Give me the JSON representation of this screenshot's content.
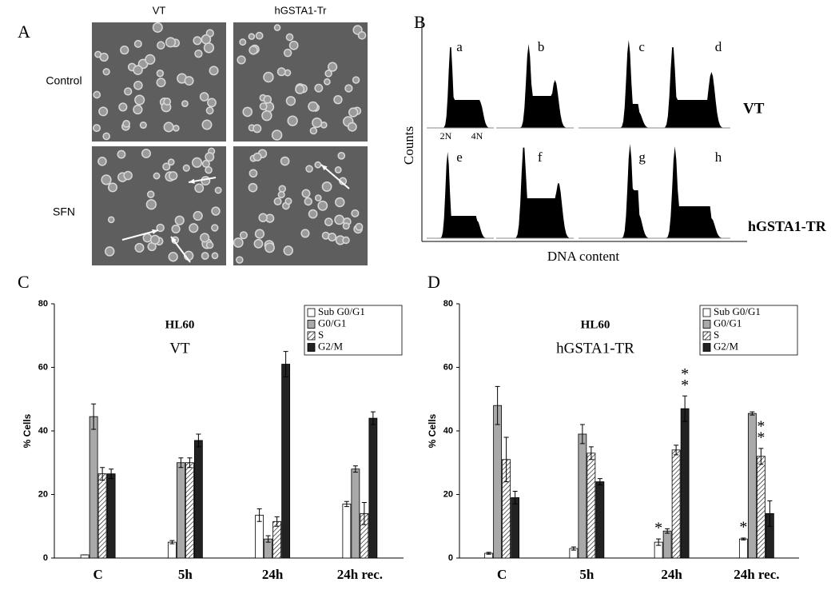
{
  "panel_a": {
    "label": "A",
    "columns": [
      "VT",
      "hGSTA1-Tr"
    ],
    "rows": [
      "Control",
      "SFN"
    ]
  },
  "panel_b": {
    "label": "B",
    "histograms": [
      "a",
      "b",
      "c",
      "d",
      "e",
      "f",
      "g",
      "h"
    ],
    "peak_labels": [
      "2N",
      "4N"
    ],
    "rows": [
      "VT",
      "hGSTA1-TR"
    ],
    "y_label": "Counts",
    "x_label": "DNA content"
  },
  "chart_data": [
    {
      "type": "bar",
      "label": "C",
      "title": "HL60",
      "subtitle": "VT",
      "y_label": "% Cells",
      "categories": [
        "C",
        "5h",
        "24h",
        "24h rec."
      ],
      "series": [
        {
          "name": "Sub G0/G1",
          "color": "#ffffff",
          "values": [
            1,
            5,
            13.5,
            17
          ],
          "errors": [
            0,
            0.5,
            2,
            0.8
          ]
        },
        {
          "name": "G0/G1",
          "color": "#a9a9a9",
          "values": [
            44.5,
            30,
            6,
            28
          ],
          "errors": [
            4,
            1.5,
            1,
            1
          ]
        },
        {
          "name": "S",
          "color": "#ffffff",
          "hatch": true,
          "values": [
            26.5,
            30,
            11.5,
            14
          ],
          "errors": [
            2,
            1.5,
            1.5,
            3.5
          ]
        },
        {
          "name": "G2/M",
          "color": "#222222",
          "values": [
            26.5,
            37,
            61,
            44
          ],
          "errors": [
            1.5,
            2,
            4,
            2
          ]
        }
      ],
      "ylim": [
        0,
        80
      ],
      "yticks": [
        0,
        20,
        40,
        60,
        80
      ],
      "legend": "top-right",
      "annotations": []
    },
    {
      "type": "bar",
      "label": "D",
      "title": "HL60",
      "subtitle": "hGSTA1-TR",
      "y_label": "% Cells",
      "categories": [
        "C",
        "5h",
        "24h",
        "24h rec."
      ],
      "series": [
        {
          "name": "Sub G0/G1",
          "color": "#ffffff",
          "values": [
            1.5,
            3,
            5,
            6
          ],
          "errors": [
            0.3,
            0.5,
            1,
            0.3
          ]
        },
        {
          "name": "G0/G1",
          "color": "#a9a9a9",
          "values": [
            48,
            39,
            8.5,
            45.5
          ],
          "errors": [
            6,
            3,
            0.7,
            0.5
          ]
        },
        {
          "name": "S",
          "color": "#ffffff",
          "hatch": true,
          "values": [
            31,
            33,
            34,
            32
          ],
          "errors": [
            7,
            2,
            1.5,
            2.5
          ]
        },
        {
          "name": "G2/M",
          "color": "#222222",
          "values": [
            19,
            24,
            47,
            14
          ],
          "errors": [
            2,
            1,
            4,
            4
          ]
        }
      ],
      "ylim": [
        0,
        80
      ],
      "yticks": [
        0,
        20,
        40,
        60,
        80
      ],
      "legend": "top-right",
      "annotations": [
        {
          "text": "*",
          "series": 0,
          "category": 2
        },
        {
          "text": "*",
          "series": 3,
          "category": 2
        },
        {
          "text": "*",
          "series": 3,
          "category": 2
        },
        {
          "text": "*",
          "series": 0,
          "category": 3
        },
        {
          "text": "*",
          "series": 2,
          "category": 3
        },
        {
          "text": "*",
          "series": 2,
          "category": 3
        }
      ]
    }
  ]
}
